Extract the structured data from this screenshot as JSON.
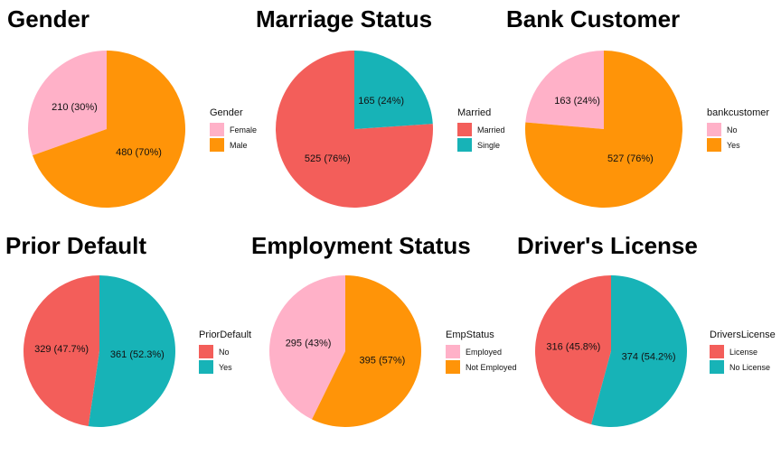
{
  "chart_data": [
    {
      "type": "pie",
      "title": "Gender",
      "legend_title": "Gender",
      "categories": [
        "Female",
        "Male"
      ],
      "values": [
        210,
        480
      ],
      "labels": [
        "210 (30%)",
        "480 (70%)"
      ],
      "colors": [
        "#FFB1C8",
        "#FF9408"
      ]
    },
    {
      "type": "pie",
      "title": "Marriage Status",
      "legend_title": "Married",
      "categories": [
        "Married",
        "Single"
      ],
      "values": [
        525,
        165
      ],
      "labels": [
        "525 (76%)",
        "165 (24%)"
      ],
      "colors": [
        "#F35E5A",
        "#17B3B7"
      ]
    },
    {
      "type": "pie",
      "title": "Bank Customer",
      "legend_title": "bankcustomer",
      "categories": [
        "No",
        "Yes"
      ],
      "values": [
        163,
        527
      ],
      "labels": [
        "163 (24%)",
        "527 (76%)"
      ],
      "colors": [
        "#FFB1C8",
        "#FF9408"
      ]
    },
    {
      "type": "pie",
      "title": "Prior Default",
      "legend_title": "PriorDefault",
      "categories": [
        "No",
        "Yes"
      ],
      "values": [
        329,
        361
      ],
      "labels": [
        "329 (47.7%)",
        "361 (52.3%)"
      ],
      "colors": [
        "#F35E5A",
        "#17B3B7"
      ]
    },
    {
      "type": "pie",
      "title": "Employment Status",
      "legend_title": "EmpStatus",
      "categories": [
        "Employed",
        "Not Employed"
      ],
      "values": [
        295,
        395
      ],
      "labels": [
        "295 (43%)",
        "395 (57%)"
      ],
      "colors": [
        "#FFB1C8",
        "#FF9408"
      ]
    },
    {
      "type": "pie",
      "title": "Driver's License",
      "legend_title": "DriversLicense",
      "categories": [
        "License",
        "No License"
      ],
      "values": [
        316,
        374
      ],
      "labels": [
        "316 (45.8%)",
        "374 (54.2%)"
      ],
      "colors": [
        "#F35E5A",
        "#17B3B7"
      ]
    }
  ]
}
